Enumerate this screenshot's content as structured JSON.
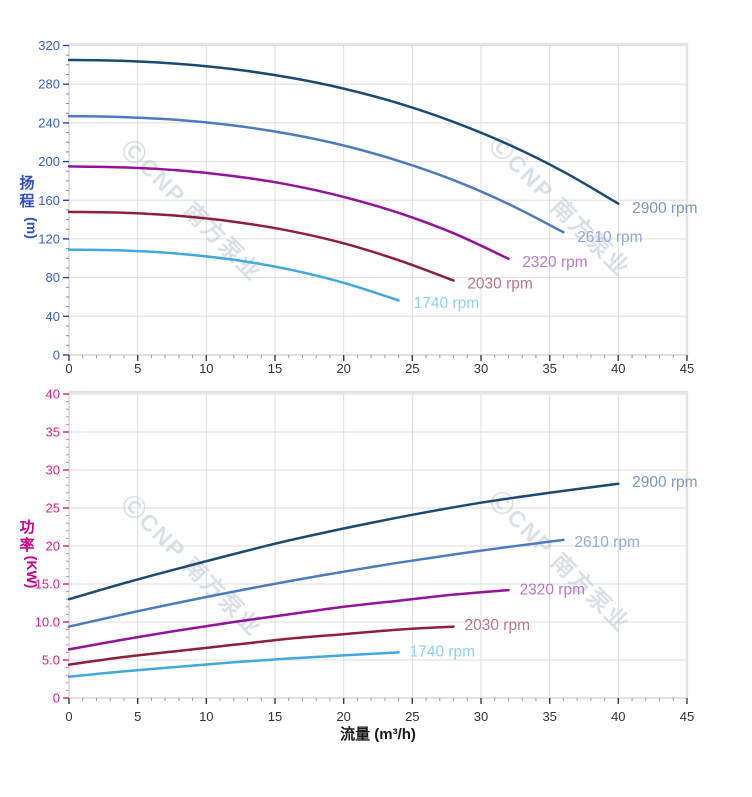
{
  "watermark": {
    "text": "ⒸCNP 南方泵业",
    "color": "#bfc8d6",
    "opacity": 0.55
  },
  "x_axis": {
    "label": "流量 (m³/h)",
    "range": [
      0,
      45
    ],
    "minor_step": 1,
    "tick_values": [
      0,
      5,
      10,
      15,
      20,
      25,
      30,
      35,
      40,
      45
    ],
    "tick_labels": [
      "0",
      "5",
      "10",
      "15",
      "20",
      "25",
      "30",
      "35",
      "40",
      "45"
    ]
  },
  "chart_data": [
    {
      "type": "line",
      "name": "head-vs-flow",
      "title": "",
      "xlabel": "流量 (m³/h)",
      "ylabel": "扬程",
      "yunit": "(m)",
      "ylim": [
        0,
        320
      ],
      "y_minor_step": 10,
      "y_tick_values": [
        0,
        40,
        80,
        120,
        160,
        200,
        240,
        280,
        320
      ],
      "y_tick_labels": [
        "0",
        "40",
        "80",
        "120",
        "160",
        "200",
        "240",
        "280",
        "320"
      ],
      "axis_text_color": "#3a5ed0",
      "axis_title_color": "#2f4ec9",
      "tick_major_color": "#2d49a8",
      "tick_minor_color": "#6e8ad9",
      "grid": true,
      "legend_position": "curve-end-labels",
      "series": [
        {
          "name": "2900 rpm",
          "color": "#1b4a73",
          "label_color": "#7e99bb",
          "x": [
            0,
            4,
            8,
            12,
            16,
            20,
            24,
            28,
            32,
            36,
            40
          ],
          "y": [
            305,
            304.1,
            301,
            295.4,
            287,
            275.4,
            260.2,
            241,
            217.6,
            189.5,
            156.5
          ],
          "label_at": [
            41,
            152
          ]
        },
        {
          "name": "2610 rpm",
          "color": "#4d7bc0",
          "label_color": "#93a9da",
          "x": [
            0,
            4,
            8,
            12,
            16,
            20,
            24,
            28,
            32,
            36
          ],
          "y": [
            247,
            246,
            243,
            237.3,
            228.6,
            216.6,
            200.7,
            180.8,
            156.1,
            127
          ],
          "label_at": [
            37,
            122
          ]
        },
        {
          "name": "2320 rpm",
          "color": "#93149b",
          "label_color": "#bb77cc",
          "x": [
            0,
            4,
            8,
            12,
            16,
            20,
            24,
            28,
            32
          ],
          "y": [
            195,
            194,
            190.9,
            185,
            176.1,
            163.5,
            147,
            125.9,
            99.5
          ],
          "label_at": [
            33,
            96
          ]
        },
        {
          "name": "2030 rpm",
          "color": "#8f1f3c",
          "label_color": "#bd7489",
          "x": [
            0,
            4,
            8,
            12,
            16,
            20,
            24,
            28
          ],
          "y": [
            148,
            147,
            143.8,
            137.8,
            128.5,
            115.5,
            98,
            77
          ],
          "label_at": [
            29,
            74
          ]
        },
        {
          "name": "1740 rpm",
          "color": "#3fa9e0",
          "label_color": "#90d2f2",
          "x": [
            0,
            4,
            8,
            12,
            16,
            20,
            24
          ],
          "y": [
            109,
            108,
            104.7,
            98.4,
            88.6,
            74.6,
            56.5
          ],
          "label_at": [
            25.1,
            54
          ]
        }
      ]
    },
    {
      "type": "line",
      "name": "power-vs-flow",
      "title": "",
      "xlabel": "流量 (m³/h)",
      "ylabel": "功率",
      "yunit": "(KW)",
      "ylim": [
        0,
        40
      ],
      "y_minor_step": 1,
      "y_tick_values": [
        0,
        5,
        10,
        15,
        20,
        25,
        30,
        35,
        40
      ],
      "y_tick_labels": [
        "0",
        "5.0",
        "10.0",
        "15.0",
        "20",
        "25",
        "30",
        "35",
        "40"
      ],
      "axis_text_color": "#e0218a",
      "axis_title_color": "#cc0088",
      "tick_major_color": "#c92287",
      "tick_minor_color": "#ef7ab9",
      "grid": true,
      "legend_position": "curve-end-labels",
      "series": [
        {
          "name": "2900 rpm",
          "color": "#1b4a73",
          "label_color": "#7e99bb",
          "x": [
            0,
            5,
            10,
            15,
            20,
            25,
            30,
            35,
            40
          ],
          "y": [
            13,
            15.6,
            18,
            20.3,
            22.3,
            24.1,
            25.7,
            27,
            28.2
          ],
          "label_at": [
            41,
            28.4
          ]
        },
        {
          "name": "2610 rpm",
          "color": "#4d7bc0",
          "label_color": "#93a9da",
          "x": [
            0,
            6,
            12,
            18,
            24,
            30,
            36
          ],
          "y": [
            9.4,
            11.8,
            14,
            16,
            17.8,
            19.4,
            20.8
          ],
          "label_at": [
            36.8,
            20.5
          ]
        },
        {
          "name": "2320 rpm",
          "color": "#93149b",
          "label_color": "#bb77cc",
          "x": [
            0,
            4,
            8,
            12,
            16,
            20,
            24,
            28,
            32
          ],
          "y": [
            6.4,
            7.7,
            8.9,
            10,
            11,
            12,
            12.8,
            13.6,
            14.2
          ],
          "label_at": [
            32.8,
            14.3
          ]
        },
        {
          "name": "2030 rpm",
          "color": "#8f1f3c",
          "label_color": "#bd7489",
          "x": [
            0,
            4,
            8,
            12,
            16,
            20,
            24,
            28
          ],
          "y": [
            4.4,
            5.4,
            6.2,
            7,
            7.8,
            8.4,
            9,
            9.4
          ],
          "label_at": [
            28.8,
            9.6
          ]
        },
        {
          "name": "1740 rpm",
          "color": "#3fa9e0",
          "label_color": "#90d2f2",
          "x": [
            0,
            4,
            8,
            12,
            16,
            20,
            24
          ],
          "y": [
            2.8,
            3.5,
            4.1,
            4.7,
            5.2,
            5.6,
            6
          ],
          "label_at": [
            24.8,
            6.1
          ]
        }
      ]
    }
  ]
}
